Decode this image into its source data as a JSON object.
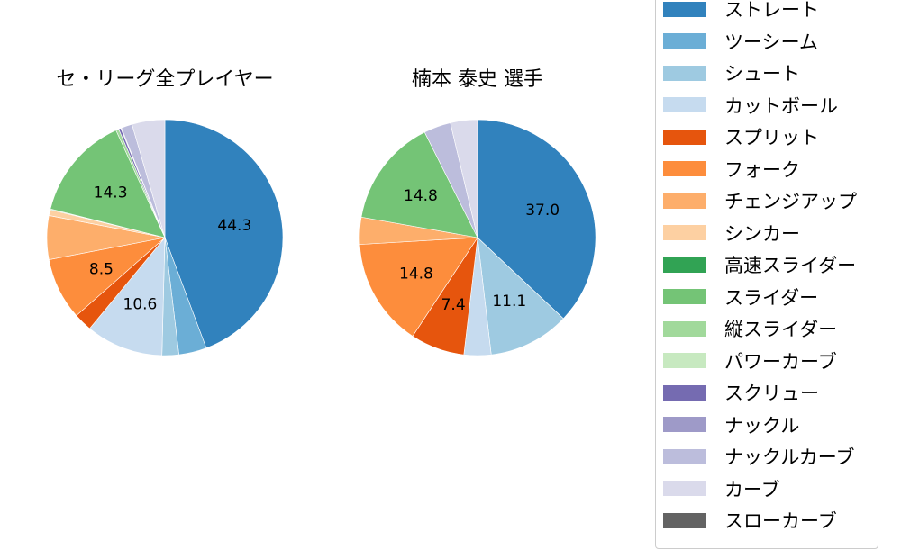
{
  "legend": {
    "items": [
      {
        "label": "ストレート",
        "color": "#3182bd"
      },
      {
        "label": "ツーシーム",
        "color": "#6baed6"
      },
      {
        "label": "シュート",
        "color": "#9ecae1"
      },
      {
        "label": "カットボール",
        "color": "#c6dbef"
      },
      {
        "label": "スプリット",
        "color": "#e6550d"
      },
      {
        "label": "フォーク",
        "color": "#fd8d3c"
      },
      {
        "label": "チェンジアップ",
        "color": "#fdae6b"
      },
      {
        "label": "シンカー",
        "color": "#fdd0a2"
      },
      {
        "label": "高速スライダー",
        "color": "#31a354"
      },
      {
        "label": "スライダー",
        "color": "#74c476"
      },
      {
        "label": "縦スライダー",
        "color": "#a1d99b"
      },
      {
        "label": "パワーカーブ",
        "color": "#c7e9c0"
      },
      {
        "label": "スクリュー",
        "color": "#756bb1"
      },
      {
        "label": "ナックル",
        "color": "#9e9ac8"
      },
      {
        "label": "ナックルカーブ",
        "color": "#bcbddc"
      },
      {
        "label": "カーブ",
        "color": "#dadaeb"
      },
      {
        "label": "スローカーブ",
        "color": "#636363"
      }
    ]
  },
  "chart_data": [
    {
      "type": "pie",
      "title": "セ・リーグ全プレイヤー",
      "center": [
        183,
        264
      ],
      "radius": 131,
      "start_angle": 90,
      "direction": "clockwise",
      "categories": [
        "ストレート",
        "ツーシーム",
        "シュート",
        "カットボール",
        "スプリット",
        "フォーク",
        "チェンジアップ",
        "シンカー",
        "高速スライダー",
        "スライダー",
        "縦スライダー",
        "パワーカーブ",
        "スクリュー",
        "ナックル",
        "ナックルカーブ",
        "カーブ",
        "スローカーブ"
      ],
      "values": [
        44.3,
        3.8,
        2.3,
        10.6,
        2.5,
        8.5,
        6.0,
        0.8,
        0.1,
        14.3,
        0.4,
        0.0,
        0.3,
        0.1,
        1.5,
        4.5,
        0.0
      ],
      "labels_shown": {
        "ストレート": "44.3",
        "カットボール": "10.6",
        "フォーク": "8.5",
        "スライダー": "14.3"
      },
      "label_threshold": 7.0
    },
    {
      "type": "pie",
      "title": "楠本 泰史  選手",
      "center": [
        530,
        264
      ],
      "radius": 131,
      "start_angle": 90,
      "direction": "clockwise",
      "categories": [
        "ストレート",
        "ツーシーム",
        "シュート",
        "カットボール",
        "スプリット",
        "フォーク",
        "チェンジアップ",
        "シンカー",
        "高速スライダー",
        "スライダー",
        "縦スライダー",
        "パワーカーブ",
        "スクリュー",
        "ナックル",
        "ナックルカーブ",
        "カーブ",
        "スローカーブ"
      ],
      "values": [
        37.0,
        0.0,
        11.1,
        3.7,
        7.4,
        14.8,
        3.7,
        0.0,
        0.0,
        14.8,
        0.0,
        0.0,
        0.0,
        0.0,
        3.7,
        3.7,
        0.0
      ],
      "labels_shown": {
        "ストレート": "37.0",
        "シュート": "11.1",
        "スプリット": "7.4",
        "フォーク": "14.8",
        "スライダー": "14.8"
      },
      "label_threshold": 7.0
    }
  ]
}
